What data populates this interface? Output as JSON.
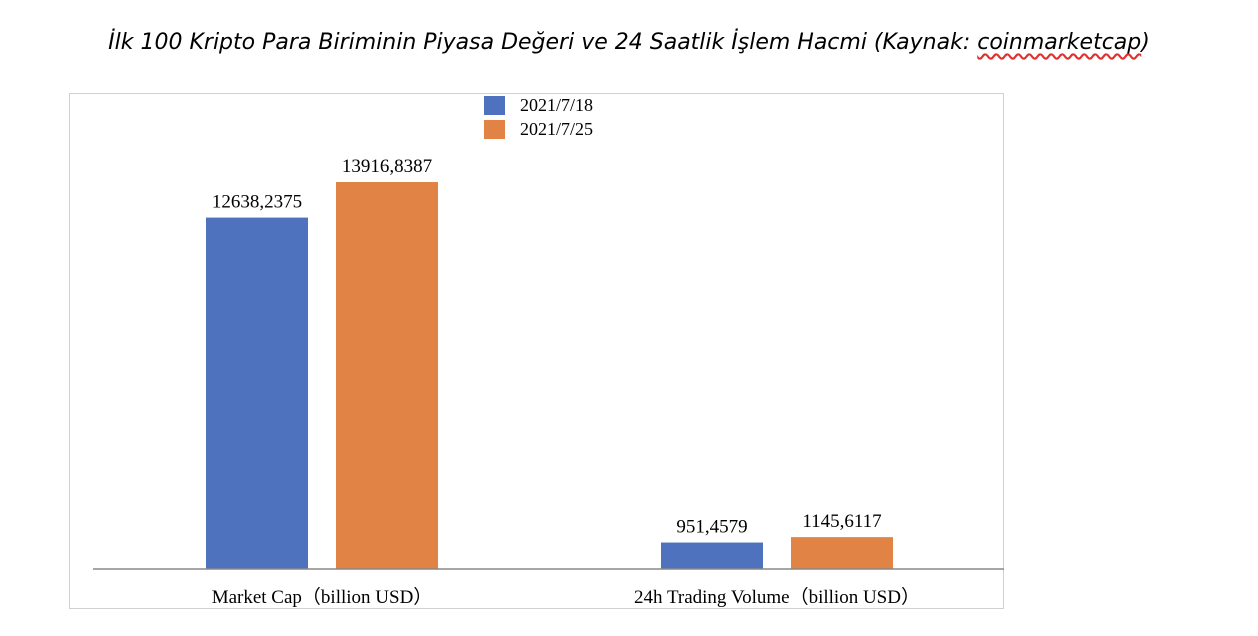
{
  "title_main": "İlk 100 Kripto Para Biriminin Piyasa Değeri ve 24 Saatlik İşlem Hacmi (Kaynak: ",
  "title_source": "coinmarketcap",
  "title_end": ")",
  "chart_data": {
    "type": "bar",
    "categories": [
      "Market Cap（billion USD）",
      "24h Trading Volume（billion USD）"
    ],
    "series": [
      {
        "name": "2021/7/18",
        "color": "#4f72be",
        "values": [
          12638.2375,
          951.4579
        ],
        "labels": [
          "12638,2375",
          "951,4579"
        ]
      },
      {
        "name": "2021/7/25",
        "color": "#e08345",
        "values": [
          13916.8387,
          1145.6117
        ],
        "labels": [
          "13916,8387",
          "1145,6117"
        ]
      }
    ],
    "ylim": [
      0,
      15500
    ],
    "grid": false,
    "legend": "top-center"
  }
}
